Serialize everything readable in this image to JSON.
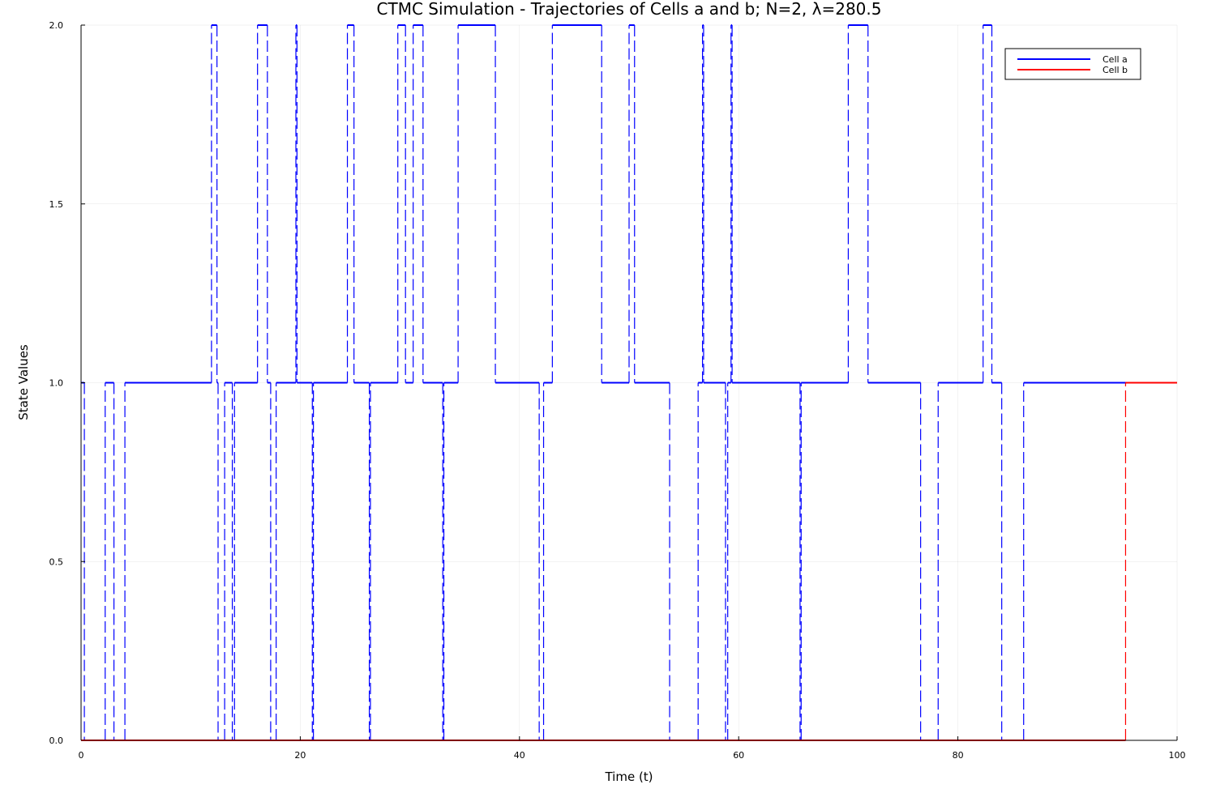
{
  "chart_data": {
    "type": "line",
    "title": "CTMC Simulation - Trajectories of Cells a and b; N=2, λ=280.5",
    "xlabel": "Time (t)",
    "ylabel": "State Values",
    "xlim": [
      0,
      100
    ],
    "ylim": [
      0,
      2
    ],
    "x_ticks": [
      "0",
      "20",
      "40",
      "60",
      "80",
      "100"
    ],
    "y_ticks": [
      "0.0",
      "0.5",
      "1.0",
      "1.5",
      "2.0"
    ],
    "grid": true,
    "legend_position": "top-right",
    "series": [
      {
        "name": "Cell a",
        "color": "#0000ff",
        "style": "step",
        "points": [
          [
            0.0,
            1
          ],
          [
            0.3,
            0
          ],
          [
            2.2,
            1
          ],
          [
            3.0,
            0
          ],
          [
            4.0,
            1
          ],
          [
            11.9,
            2
          ],
          [
            12.4,
            1
          ],
          [
            12.5,
            0
          ],
          [
            13.1,
            1
          ],
          [
            13.8,
            0
          ],
          [
            14.0,
            1
          ],
          [
            16.1,
            2
          ],
          [
            17.0,
            1
          ],
          [
            17.3,
            0
          ],
          [
            17.8,
            1
          ],
          [
            19.6,
            2
          ],
          [
            19.7,
            1
          ],
          [
            21.1,
            0
          ],
          [
            21.2,
            1
          ],
          [
            24.3,
            2
          ],
          [
            24.9,
            1
          ],
          [
            26.3,
            0
          ],
          [
            26.4,
            1
          ],
          [
            28.9,
            2
          ],
          [
            29.6,
            1
          ],
          [
            30.3,
            2
          ],
          [
            31.2,
            1
          ],
          [
            33.0,
            0
          ],
          [
            33.1,
            1
          ],
          [
            34.4,
            2
          ],
          [
            37.8,
            1
          ],
          [
            41.8,
            0
          ],
          [
            42.2,
            1
          ],
          [
            43.0,
            2
          ],
          [
            47.5,
            1
          ],
          [
            50.0,
            2
          ],
          [
            50.5,
            1
          ],
          [
            53.7,
            0
          ],
          [
            56.3,
            1
          ],
          [
            56.7,
            2
          ],
          [
            56.8,
            1
          ],
          [
            58.8,
            0
          ],
          [
            59.0,
            1
          ],
          [
            59.3,
            2
          ],
          [
            59.4,
            1
          ],
          [
            65.6,
            0
          ],
          [
            65.7,
            1
          ],
          [
            70.0,
            2
          ],
          [
            71.8,
            1
          ],
          [
            76.6,
            0
          ],
          [
            78.2,
            1
          ],
          [
            82.3,
            2
          ],
          [
            83.1,
            1
          ],
          [
            84.0,
            0
          ],
          [
            86.0,
            1
          ],
          [
            95.3,
            1
          ]
        ]
      },
      {
        "name": "Cell b",
        "color": "#ff0000",
        "style": "step",
        "points": [
          [
            0.0,
            0
          ],
          [
            95.3,
            1
          ],
          [
            100.0,
            1
          ]
        ]
      }
    ]
  }
}
